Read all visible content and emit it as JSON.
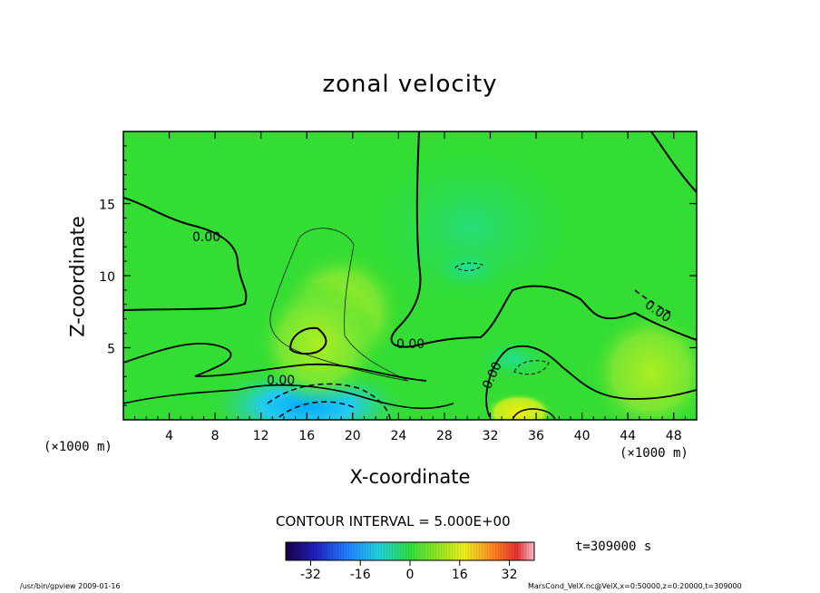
{
  "chart_data": {
    "type": "heatmap",
    "title": "zonal velocity",
    "xlabel": "X-coordinate",
    "ylabel": "Z-coordinate",
    "x_unit_label": "(×1000 m)",
    "x_unit_label_right": "(×1000 m)",
    "xlim": [
      0,
      50
    ],
    "ylim": [
      0,
      20
    ],
    "x_ticks": [
      4,
      8,
      12,
      16,
      20,
      24,
      28,
      32,
      36,
      40,
      44,
      48
    ],
    "y_ticks": [
      5,
      10,
      15
    ],
    "contour_interval_label": "CONTOUR INTERVAL = 5.000E+00",
    "contour_labels": [
      "0.00",
      "0.00",
      "0.00",
      "0.00",
      "0.00"
    ],
    "time_label": "t=309000 s",
    "colorbar": {
      "range": [
        -40,
        40
      ],
      "ticks": [
        -32,
        -16,
        0,
        16,
        32
      ],
      "tick_labels": [
        "-32",
        "-16",
        "0",
        "16",
        "32"
      ]
    },
    "features": [
      {
        "x": 16,
        "z": 1.0,
        "value": -20
      },
      {
        "x": 19,
        "z": 7.5,
        "value": 8
      },
      {
        "x": 17,
        "z": 5.3,
        "value": 10
      },
      {
        "x": 30,
        "z": 10.5,
        "value": -5
      },
      {
        "x": 34.5,
        "z": 0.5,
        "value": 15
      },
      {
        "x": 34,
        "z": 4.2,
        "value": -5
      },
      {
        "x": 46,
        "z": 3.3,
        "value": 4
      }
    ],
    "grid": false
  },
  "footer": {
    "left": "/usr/bin/gpview   2009-01-16",
    "right": "MarsCond_VelX.nc@VelX,x=0:50000,z=0:20000,t=309000"
  },
  "colors": {
    "background_field": "#22dd22",
    "frame": "#000000"
  }
}
